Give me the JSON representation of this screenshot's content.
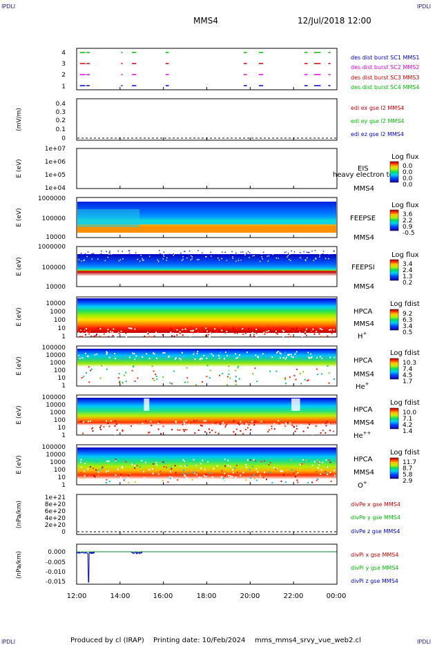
{
  "header": {
    "mission": "MMS4",
    "datetime": "12/Jul/2018 12:00",
    "corner_tl": "IPDLI",
    "corner_tr": "IPDLI",
    "corner_bl": "IPDLI",
    "corner_br": "IPDLI"
  },
  "footer": {
    "produced": "Produced by cl (IRAP)",
    "printing": "Printing date: 10/Feb/2024",
    "file": "mms_mms4_srvy_vue_web2.cl"
  },
  "chart_data": {
    "type": "heatmap",
    "x_ticks": [
      "12:00",
      "14:00",
      "16:00",
      "18:00",
      "20:00",
      "22:00",
      "00:00"
    ],
    "x_range_hours": [
      12,
      24
    ],
    "panels": [
      {
        "id": "burst",
        "yticks": [
          "1",
          "2",
          "3",
          "4"
        ],
        "legend": [
          {
            "text": "des dist burst SC1 MMS1",
            "color": "#0000cc"
          },
          {
            "text": "des dist burst SC2 MMS2",
            "color": "#dd00dd"
          },
          {
            "text": "des dist burst SC3 MMS3",
            "color": "#cc0000"
          },
          {
            "text": "des dist burst SC4 MMS4",
            "color": "#00bb00"
          }
        ],
        "bursts_hours": [
          [
            12.15,
            12.4
          ],
          [
            12.45,
            12.6
          ],
          [
            14.05,
            14.12
          ],
          [
            14.55,
            14.75
          ],
          [
            16.1,
            16.25
          ],
          [
            19.7,
            19.85
          ],
          [
            20.4,
            20.6
          ],
          [
            22.5,
            22.65
          ],
          [
            22.95,
            23.25
          ],
          [
            23.6,
            23.7
          ]
        ]
      },
      {
        "id": "edi",
        "ylabel": "(mV/m)",
        "yticks": [
          "0",
          "0.1",
          "0.2",
          "0.3",
          "0.4"
        ],
        "legend": [
          {
            "text": "edi ex gse l2 MMS4",
            "color": "#cc0000"
          },
          {
            "text": "edi ey gse l2 MMS4",
            "color": "#00bb00"
          },
          {
            "text": "edi ez gse l2 MMS4",
            "color": "#0000cc"
          }
        ]
      },
      {
        "id": "eis",
        "ylabel": "E (eV)",
        "yticks": [
          "1e+04",
          "1e+05",
          "1e+06",
          "1e+07"
        ],
        "inst": "EIS",
        "label2": "MMS4",
        "extra": "heavy electron to",
        "cb_title": "Log flux",
        "cb_ticks": [
          "0.0",
          "0.0",
          "0.0",
          "0.0"
        ],
        "colormap": "rainbow"
      },
      {
        "id": "feepse",
        "ylabel": "E (eV)",
        "yticks": [
          "10000",
          "100000",
          "1000000"
        ],
        "inst": "FEEPSE",
        "label2": "MMS4",
        "cb_title": "Log flux",
        "cb_ticks": [
          "3.6",
          "2.2",
          "0.9",
          "-0.5"
        ],
        "colormap": "rainbow"
      },
      {
        "id": "feepsi",
        "ylabel": "E (eV)",
        "yticks": [
          "10000",
          "100000",
          "1000000"
        ],
        "inst": "FEEPSI",
        "label2": "MMS4",
        "cb_title": "Log flux",
        "cb_ticks": [
          "3.4",
          "2.4",
          "1.3",
          "0.2"
        ],
        "colormap": "rainbow"
      },
      {
        "id": "hpca_h",
        "ylabel": "E (eV)",
        "yticks": [
          "1",
          "10",
          "100",
          "1000",
          "10000"
        ],
        "inst": "HPCA",
        "label2": "MMS4",
        "species": "H",
        "charge": "+",
        "cb_title": "Log fdist",
        "cb_ticks": [
          "9.2",
          "6.3",
          "3.4",
          "0.5"
        ],
        "colormap": "rainbow"
      },
      {
        "id": "hpca_he",
        "ylabel": "E (eV)",
        "yticks": [
          "1",
          "10",
          "100",
          "1000",
          "10000",
          "100000"
        ],
        "inst": "HPCA",
        "label2": "MMS4",
        "species": "He",
        "charge": "+",
        "cb_title": "Log fdist",
        "cb_ticks": [
          "10.3",
          "7.4",
          "4.5",
          "1.7"
        ],
        "colormap": "rainbow"
      },
      {
        "id": "hpca_hepp",
        "ylabel": "E (eV)",
        "yticks": [
          "1",
          "10",
          "100",
          "1000",
          "10000",
          "100000"
        ],
        "inst": "HPCA",
        "label2": "MMS4",
        "species": "He",
        "charge": "++",
        "cb_title": "Log fdist",
        "cb_ticks": [
          "10.0",
          "7.1",
          "4.2",
          "1.4"
        ],
        "colormap": "rainbow"
      },
      {
        "id": "hpca_o",
        "ylabel": "E (eV)",
        "yticks": [
          "1",
          "10",
          "100",
          "1000",
          "10000",
          "100000"
        ],
        "inst": "HPCA",
        "label2": "MMS4",
        "species": "O",
        "charge": "+",
        "cb_title": "Log fdist",
        "cb_ticks": [
          "11.7",
          "8.7",
          "5.8",
          "2.9"
        ],
        "colormap": "rainbow"
      },
      {
        "id": "divpe",
        "ylabel": "(nPa/km)",
        "yticks": [
          "0",
          "2e+20",
          "4e+20",
          "6e+20",
          "8e+20",
          "1e+21"
        ],
        "legend": [
          {
            "text": "divPe x gse MMS4",
            "color": "#cc0000"
          },
          {
            "text": "divPe y gse MMS4",
            "color": "#00bb00"
          },
          {
            "text": "divPe z gse MMS4",
            "color": "#0000cc"
          }
        ]
      },
      {
        "id": "divpi",
        "ylabel": "(nPa/km)",
        "yticks": [
          "-0.015",
          "-0.010",
          "-0.005",
          "0.000"
        ],
        "legend": [
          {
            "text": "divPi x gse MMS4",
            "color": "#cc0000"
          },
          {
            "text": "divPi y gse MMS4",
            "color": "#00bb00"
          },
          {
            "text": "divPi z gse MMS4",
            "color": "#0000cc"
          }
        ]
      }
    ]
  }
}
